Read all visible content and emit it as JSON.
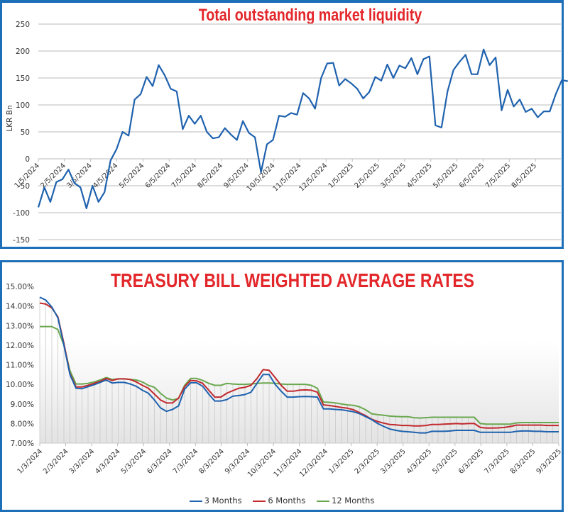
{
  "chart_data": [
    {
      "type": "line",
      "title": "Total outstanding market liquidity",
      "xlabel": "",
      "ylabel": "LKR Bn",
      "ylim": [
        -150,
        250
      ],
      "yticks": [
        250,
        200,
        150,
        100,
        50,
        0,
        -50,
        -100,
        -150
      ],
      "grid": true,
      "legend": "none",
      "x_tick_labels": [
        "1/5/2024",
        "2/5/2024",
        "3/5/2024",
        "4/5/2024",
        "5/5/2024",
        "6/5/2024",
        "7/5/2024",
        "8/5/2024",
        "9/5/2024",
        "10/5/2024",
        "11/5/2024",
        "12/5/2024",
        "1/5/2025",
        "2/5/2025",
        "3/5/2025",
        "4/5/2025",
        "5/5/2025",
        "6/5/2025",
        "7/5/2025",
        "8/5/2025"
      ],
      "x_start": "1/5/2024",
      "x_step": "weekly",
      "series": [
        {
          "name": "Total outstanding market liquidity",
          "color": "#1f62ae",
          "values": [
            -90,
            -53,
            -80,
            -43,
            -38,
            -20,
            -45,
            -53,
            -92,
            -50,
            -80,
            -62,
            -3,
            18,
            50,
            43,
            110,
            120,
            152,
            135,
            174,
            155,
            130,
            125,
            55,
            80,
            65,
            80,
            50,
            38,
            40,
            57,
            45,
            35,
            70,
            48,
            40,
            -25,
            27,
            35,
            80,
            78,
            85,
            82,
            122,
            112,
            93,
            150,
            177,
            178,
            136,
            148,
            140,
            130,
            112,
            124,
            152,
            145,
            175,
            150,
            173,
            168,
            187,
            157,
            185,
            190,
            62,
            58,
            125,
            165,
            180,
            193,
            157,
            157,
            203,
            174,
            188,
            90,
            128,
            97,
            110,
            87,
            93,
            77,
            88,
            88,
            120,
            146,
            144
          ]
        }
      ]
    },
    {
      "type": "line",
      "title": "TREASURY BILL WEIGHTED AVERAGE RATES",
      "xlabel": "",
      "ylabel": "",
      "ylim": [
        7.0,
        15.0
      ],
      "yticks": [
        "15.00%",
        "14.00%",
        "13.00%",
        "12.00%",
        "11.00%",
        "10.00%",
        "9.00%",
        "8.00%",
        "7.00%"
      ],
      "grid": false,
      "legend": "bottom",
      "x_tick_labels": [
        "1/3/2024",
        "2/3/2024",
        "3/3/2024",
        "4/3/2024",
        "5/3/2024",
        "6/3/2024",
        "7/3/2024",
        "8/3/2024",
        "9/3/2024",
        "10/3/2024",
        "11/3/2024",
        "12/3/2024",
        "1/3/2025",
        "2/3/2025",
        "3/3/2025",
        "4/3/2025",
        "5/3/2025",
        "6/3/2025",
        "7/3/2025",
        "8/3/2025",
        "9/3/2025"
      ],
      "x_start": "1/3/2024",
      "x_step": "weekly",
      "series": [
        {
          "name": "3 Months",
          "color": "#1f62ae",
          "values": [
            14.45,
            14.3,
            13.95,
            13.4,
            12.0,
            10.5,
            9.8,
            9.78,
            9.88,
            9.98,
            10.1,
            10.22,
            10.07,
            10.1,
            10.1,
            10.02,
            9.9,
            9.7,
            9.55,
            9.2,
            8.8,
            8.62,
            8.72,
            8.9,
            9.75,
            10.08,
            10.08,
            9.9,
            9.5,
            9.15,
            9.15,
            9.22,
            9.4,
            9.43,
            9.48,
            9.6,
            10.05,
            10.5,
            10.5,
            10.0,
            9.65,
            9.35,
            9.35,
            9.37,
            9.38,
            9.37,
            9.35,
            8.75,
            8.75,
            8.72,
            8.7,
            8.65,
            8.6,
            8.5,
            8.35,
            8.2,
            8.0,
            7.85,
            7.72,
            7.65,
            7.6,
            7.58,
            7.55,
            7.52,
            7.52,
            7.6,
            7.6,
            7.6,
            7.62,
            7.65,
            7.65,
            7.65,
            7.65,
            7.55,
            7.55,
            7.55,
            7.55,
            7.55,
            7.55,
            7.6,
            7.62,
            7.62,
            7.6,
            7.6,
            7.58,
            7.58,
            7.58
          ]
        },
        {
          "name": "6 Months",
          "color": "#c0292e",
          "values": [
            14.15,
            14.1,
            13.9,
            13.45,
            12.1,
            10.55,
            9.87,
            9.87,
            9.95,
            10.05,
            10.15,
            10.3,
            10.2,
            10.28,
            10.28,
            10.25,
            10.12,
            9.95,
            9.8,
            9.5,
            9.2,
            9.05,
            9.05,
            9.3,
            9.88,
            10.2,
            10.18,
            10.05,
            9.7,
            9.35,
            9.35,
            9.55,
            9.68,
            9.8,
            9.85,
            9.95,
            10.3,
            10.75,
            10.72,
            10.35,
            9.95,
            9.65,
            9.65,
            9.7,
            9.72,
            9.7,
            9.6,
            8.95,
            8.92,
            8.87,
            8.82,
            8.78,
            8.7,
            8.55,
            8.4,
            8.22,
            8.1,
            8.02,
            7.95,
            7.93,
            7.9,
            7.9,
            7.88,
            7.88,
            7.9,
            7.95,
            7.95,
            7.97,
            7.98,
            8.0,
            7.98,
            8.0,
            8.0,
            7.8,
            7.77,
            7.77,
            7.78,
            7.8,
            7.85,
            7.92,
            7.92,
            7.92,
            7.92,
            7.92,
            7.9,
            7.9,
            7.9
          ]
        },
        {
          "name": "12 Months",
          "color": "#6aa84f",
          "values": [
            12.95,
            12.95,
            12.95,
            12.8,
            12.0,
            10.7,
            10.02,
            10.02,
            10.05,
            10.12,
            10.22,
            10.35,
            10.25,
            10.28,
            10.28,
            10.25,
            10.22,
            10.12,
            9.95,
            9.85,
            9.55,
            9.3,
            9.2,
            9.28,
            9.95,
            10.3,
            10.3,
            10.2,
            10.05,
            9.95,
            9.95,
            10.05,
            10.02,
            10.0,
            10.0,
            10.02,
            10.05,
            10.07,
            10.07,
            10.05,
            10.02,
            10.0,
            10.0,
            10.0,
            10.0,
            9.95,
            9.8,
            9.1,
            9.08,
            9.05,
            9.0,
            8.95,
            8.93,
            8.85,
            8.7,
            8.5,
            8.45,
            8.42,
            8.38,
            8.36,
            8.35,
            8.35,
            8.3,
            8.28,
            8.3,
            8.32,
            8.32,
            8.32,
            8.32,
            8.32,
            8.32,
            8.32,
            8.32,
            8.0,
            7.97,
            7.97,
            7.97,
            7.97,
            7.97,
            8.03,
            8.05,
            8.05,
            8.05,
            8.05,
            8.05,
            8.05,
            8.05
          ]
        }
      ]
    }
  ],
  "labels": {
    "top_title": "Total outstanding market liquidity",
    "top_ylabel": "LKR Bn",
    "bottom_title": "TREASURY BILL WEIGHTED AVERAGE RATES",
    "legend": [
      "3 Months",
      "6 Months",
      "12 Months"
    ]
  },
  "colors": {
    "frame": "#1d6fb8",
    "title": "#e3262a",
    "liquidity_line": "#1f62ae",
    "series_3m": "#1f62ae",
    "series_6m": "#c0292e",
    "series_12m": "#6aa84f"
  }
}
